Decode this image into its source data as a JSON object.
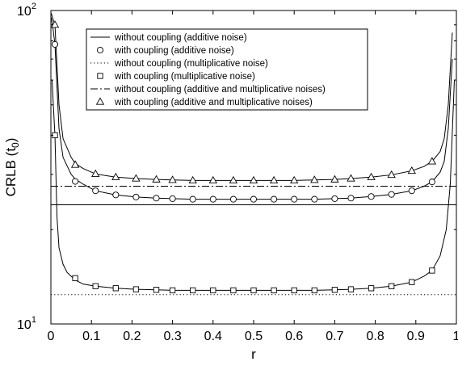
{
  "chart_data": {
    "type": "line",
    "xlabel": "r",
    "ylabel_main": "CRLB (t",
    "ylabel_sub": "0",
    "ylabel_close": ")",
    "xlim": [
      0,
      1
    ],
    "ylim": [
      10,
      100
    ],
    "yscale": "log",
    "grid": false,
    "legend_placement": "top-left",
    "x_ticks": [
      0,
      0.1,
      0.2,
      0.3,
      0.4,
      0.5,
      0.6,
      0.7,
      0.8,
      0.9,
      1
    ],
    "x_tick_labels": [
      "0",
      "0.1",
      "0.2",
      "0.3",
      "0.4",
      "0.5",
      "0.6",
      "0.7",
      "0.8",
      "0.9",
      "1"
    ],
    "y_ticks": [
      {
        "value": 10,
        "base": "10",
        "exp": "1"
      },
      {
        "value": 100,
        "base": "10",
        "exp": "2"
      }
    ],
    "series": [
      {
        "name": "without coupling (additive noise)",
        "style": "solid",
        "marker": "none",
        "x": [
          0,
          1
        ],
        "y": [
          24.0,
          24.0
        ]
      },
      {
        "name": "with coupling (additive noise)",
        "style": "solid",
        "marker": "circle",
        "x": [
          0.001,
          0.005,
          0.01,
          0.02,
          0.03,
          0.05,
          0.06,
          0.08,
          0.11,
          0.16,
          0.21,
          0.26,
          0.3,
          0.35,
          0.4,
          0.45,
          0.5,
          0.55,
          0.6,
          0.65,
          0.7,
          0.74,
          0.79,
          0.84,
          0.89,
          0.92,
          0.94,
          0.96,
          0.97,
          0.98,
          0.99
        ],
        "y": [
          95,
          88,
          78,
          42,
          34,
          30,
          29.0,
          27.9,
          26.6,
          25.8,
          25.4,
          25.2,
          25.1,
          25.0,
          25.0,
          25.0,
          25.0,
          25.0,
          25.0,
          25.0,
          25.1,
          25.2,
          25.5,
          25.9,
          26.6,
          27.5,
          28.4,
          30.5,
          33,
          42,
          70
        ],
        "marker_x": [
          0.01,
          0.06,
          0.11,
          0.16,
          0.21,
          0.26,
          0.3,
          0.35,
          0.4,
          0.45,
          0.5,
          0.55,
          0.6,
          0.65,
          0.7,
          0.74,
          0.79,
          0.84,
          0.89,
          0.94
        ],
        "marker_y": [
          78,
          28.5,
          26.6,
          25.8,
          25.4,
          25.2,
          25.1,
          25.0,
          25.0,
          25.0,
          25.0,
          25.0,
          25.0,
          25.0,
          25.1,
          25.2,
          25.5,
          25.9,
          26.6,
          28.4
        ]
      },
      {
        "name": "without coupling (multiplicative noise)",
        "style": "dotted",
        "marker": "none",
        "x": [
          0,
          1
        ],
        "y": [
          12.4,
          12.4
        ]
      },
      {
        "name": "with coupling (multiplicative noise)",
        "style": "solid",
        "marker": "square",
        "x": [
          0.003,
          0.006,
          0.01,
          0.015,
          0.02,
          0.03,
          0.04,
          0.06,
          0.08,
          0.11,
          0.16,
          0.21,
          0.26,
          0.3,
          0.35,
          0.4,
          0.45,
          0.5,
          0.55,
          0.6,
          0.65,
          0.7,
          0.74,
          0.79,
          0.84,
          0.89,
          0.92,
          0.94,
          0.96,
          0.975,
          0.985,
          0.995
        ],
        "y": [
          60,
          50,
          40,
          22,
          17.5,
          15.5,
          14.6,
          13.8,
          13.4,
          13.2,
          13.0,
          12.9,
          12.85,
          12.8,
          12.8,
          12.8,
          12.8,
          12.8,
          12.8,
          12.8,
          12.8,
          12.85,
          12.9,
          13.0,
          13.2,
          13.6,
          14.2,
          14.8,
          16.5,
          20,
          28,
          60
        ],
        "marker_x": [
          0.01,
          0.06,
          0.11,
          0.16,
          0.21,
          0.26,
          0.3,
          0.35,
          0.4,
          0.45,
          0.5,
          0.55,
          0.6,
          0.65,
          0.7,
          0.74,
          0.79,
          0.84,
          0.89,
          0.94
        ],
        "marker_y": [
          40,
          14.0,
          13.2,
          13.0,
          12.9,
          12.85,
          12.8,
          12.8,
          12.8,
          12.8,
          12.8,
          12.8,
          12.8,
          12.8,
          12.85,
          12.9,
          13.0,
          13.2,
          13.6,
          14.8
        ]
      },
      {
        "name": "without coupling (additive and multiplicative noises)",
        "style": "dashdot",
        "marker": "none",
        "x": [
          0,
          1
        ],
        "y": [
          27.5,
          27.5
        ]
      },
      {
        "name": "with coupling (additive and multiplicative noises)",
        "style": "solid",
        "marker": "triangle",
        "x": [
          0.001,
          0.005,
          0.01,
          0.02,
          0.03,
          0.05,
          0.06,
          0.08,
          0.11,
          0.16,
          0.21,
          0.26,
          0.3,
          0.35,
          0.4,
          0.45,
          0.5,
          0.55,
          0.6,
          0.65,
          0.7,
          0.74,
          0.79,
          0.84,
          0.89,
          0.92,
          0.94,
          0.96,
          0.97,
          0.98,
          0.99
        ],
        "y": [
          98,
          94,
          90,
          50,
          39,
          34,
          32.5,
          31.3,
          30.1,
          29.4,
          29.1,
          28.9,
          28.8,
          28.7,
          28.7,
          28.7,
          28.7,
          28.7,
          28.7,
          28.8,
          28.9,
          29.1,
          29.4,
          29.9,
          30.8,
          31.8,
          33.0,
          35.5,
          39,
          50,
          85
        ],
        "marker_x": [
          0.01,
          0.06,
          0.11,
          0.16,
          0.21,
          0.26,
          0.3,
          0.35,
          0.4,
          0.45,
          0.5,
          0.55,
          0.6,
          0.65,
          0.7,
          0.74,
          0.79,
          0.84,
          0.89,
          0.94
        ],
        "marker_y": [
          90,
          32.2,
          30.1,
          29.4,
          29.1,
          28.9,
          28.8,
          28.7,
          28.7,
          28.7,
          28.7,
          28.7,
          28.7,
          28.8,
          28.9,
          29.1,
          29.4,
          29.9,
          30.8,
          33.0
        ]
      }
    ]
  }
}
